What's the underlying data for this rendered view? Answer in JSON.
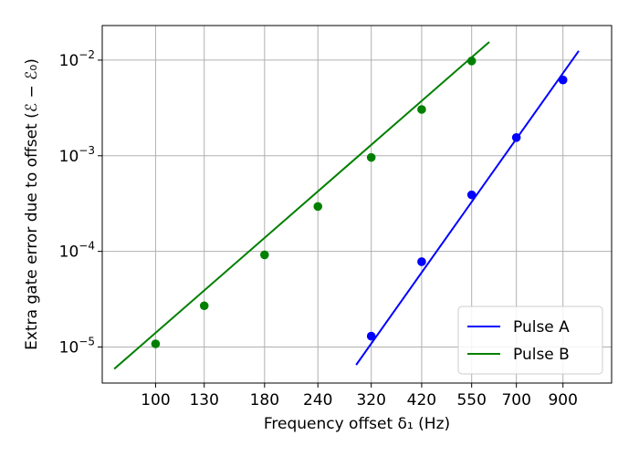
{
  "chart_data": {
    "type": "line",
    "xscale": "log",
    "yscale": "log",
    "xlabel": "Frequency offset δ₁ (Hz)",
    "ylabel": "Extra gate error due to offset (ℰ − ℰ₀)",
    "x_ticks": [
      100,
      130,
      180,
      240,
      320,
      420,
      550,
      700,
      900
    ],
    "x_tick_labels": [
      "100",
      "130",
      "180",
      "240",
      "320",
      "420",
      "550",
      "700",
      "900"
    ],
    "y_ticks": [
      1e-05,
      0.0001,
      0.001,
      0.01
    ],
    "y_tick_labels": [
      {
        "base": "10",
        "exp": "−5"
      },
      {
        "base": "10",
        "exp": "−4"
      },
      {
        "base": "10",
        "exp": "−3"
      },
      {
        "base": "10",
        "exp": "−2"
      }
    ],
    "xlim": [
      75,
      1170
    ],
    "ylim": [
      4.2e-06,
      0.023
    ],
    "grid": true,
    "legend_position": "bottom-right",
    "series": [
      {
        "name": "Pulse A",
        "color": "#0000ff",
        "points": [
          {
            "x": 320,
            "y": 1.3e-05
          },
          {
            "x": 420,
            "y": 7.8e-05
          },
          {
            "x": 550,
            "y": 0.00039
          },
          {
            "x": 700,
            "y": 0.00155
          },
          {
            "x": 900,
            "y": 0.0062
          }
        ],
        "fit_line": [
          {
            "x": 295,
            "y": 6.5e-06
          },
          {
            "x": 980,
            "y": 0.0125
          }
        ]
      },
      {
        "name": "Pulse B",
        "color": "#008000",
        "points": [
          {
            "x": 100,
            "y": 1.08e-05
          },
          {
            "x": 130,
            "y": 2.7e-05
          },
          {
            "x": 180,
            "y": 9.2e-05
          },
          {
            "x": 240,
            "y": 0.000295
          },
          {
            "x": 320,
            "y": 0.00096
          },
          {
            "x": 420,
            "y": 0.00305
          },
          {
            "x": 550,
            "y": 0.0098
          }
        ],
        "fit_line": [
          {
            "x": 80,
            "y": 5.9e-06
          },
          {
            "x": 605,
            "y": 0.0155
          }
        ]
      }
    ]
  }
}
